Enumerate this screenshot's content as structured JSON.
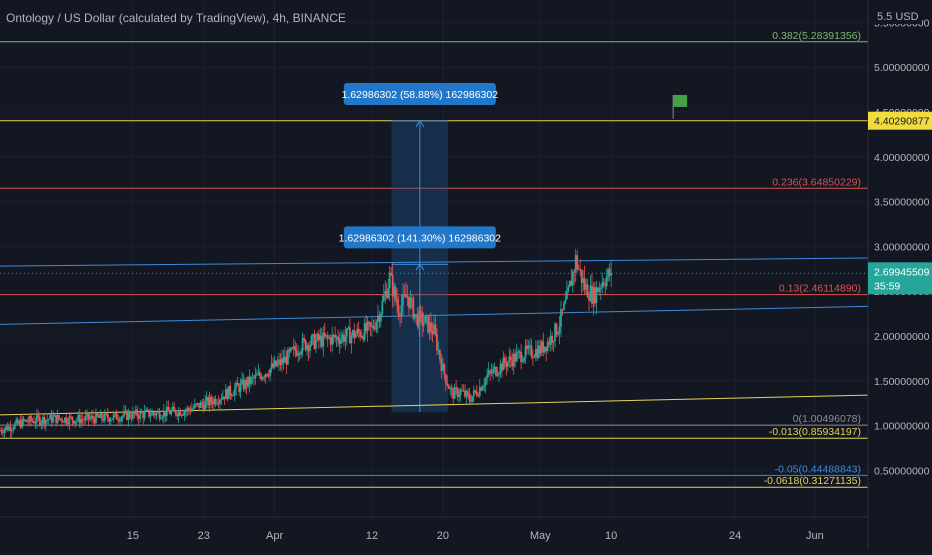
{
  "title": "Ontology / US Dollar (calculated by TradingView), 4h, BINANCE",
  "currency_label": "5.5 USD",
  "colors": {
    "background": "#131722",
    "up": "#26a69a",
    "down": "#ef5350",
    "axis_text": "#b2b5be",
    "measure_fill": "#1e5a96",
    "measure_label": "#2377c9"
  },
  "chart_data": {
    "type": "candlestick",
    "symbol": "Ontology / US Dollar",
    "timeframe": "4h",
    "exchange": "BINANCE",
    "ylim": [
      -0.02,
      5.75
    ],
    "y_ticks": [
      {
        "value": 0.5,
        "label": "0.50000000"
      },
      {
        "value": 1.0,
        "label": "1.00000000"
      },
      {
        "value": 1.5,
        "label": "1.50000000"
      },
      {
        "value": 2.0,
        "label": "2.00000000"
      },
      {
        "value": 2.5,
        "label": "2.50000000"
      },
      {
        "value": 3.0,
        "label": "3.00000000"
      },
      {
        "value": 3.5,
        "label": "3.50000000"
      },
      {
        "value": 4.0,
        "label": "4.00000000"
      },
      {
        "value": 4.5,
        "label": "4.50000000"
      },
      {
        "value": 5.0,
        "label": "5.00000000"
      },
      {
        "value": 5.5,
        "label": "5.50000000"
      }
    ],
    "x_ticks": [
      {
        "day": 15,
        "label": "15"
      },
      {
        "day": 23,
        "label": "23"
      },
      {
        "day": 31,
        "label": "Apr"
      },
      {
        "day": 42,
        "label": "12"
      },
      {
        "day": 50,
        "label": "20"
      },
      {
        "day": 61,
        "label": "May"
      },
      {
        "day": 69,
        "label": "10"
      },
      {
        "day": 83,
        "label": "24"
      },
      {
        "day": 92,
        "label": "Jun"
      }
    ],
    "xlim": [
      0,
      98
    ],
    "price_path": [
      [
        0,
        0.95
      ],
      [
        3,
        1.05
      ],
      [
        6,
        1.08
      ],
      [
        9,
        1.07
      ],
      [
        12,
        1.09
      ],
      [
        15,
        1.12
      ],
      [
        18,
        1.14
      ],
      [
        21,
        1.17
      ],
      [
        24,
        1.28
      ],
      [
        26,
        1.38
      ],
      [
        28,
        1.48
      ],
      [
        30,
        1.6
      ],
      [
        32,
        1.72
      ],
      [
        34,
        1.9
      ],
      [
        36,
        1.95
      ],
      [
        38,
        1.98
      ],
      [
        40,
        2.02
      ],
      [
        42,
        2.08
      ],
      [
        43,
        2.3
      ],
      [
        44,
        2.65
      ],
      [
        45,
        2.3
      ],
      [
        46,
        2.45
      ],
      [
        47,
        2.2
      ],
      [
        48,
        2.15
      ],
      [
        49,
        2.05
      ],
      [
        50,
        1.62
      ],
      [
        51,
        1.35
      ],
      [
        52,
        1.38
      ],
      [
        53,
        1.3
      ],
      [
        54,
        1.4
      ],
      [
        55,
        1.55
      ],
      [
        57,
        1.7
      ],
      [
        59,
        1.8
      ],
      [
        61,
        1.85
      ],
      [
        62,
        1.95
      ],
      [
        63,
        2.1
      ],
      [
        64,
        2.4
      ],
      [
        65,
        2.85
      ],
      [
        66,
        2.55
      ],
      [
        67,
        2.45
      ],
      [
        68,
        2.62
      ],
      [
        69,
        2.7
      ]
    ],
    "last_price": 2.69945509,
    "last_price_label": "2.69945509",
    "countdown": "35:59",
    "marked_price": 4.40290877,
    "marked_price_label": "4.40290877",
    "fib_levels": [
      {
        "value": 5.28391356,
        "label": "0.382(5.28391356)",
        "color": "#7cb86a"
      },
      {
        "value": 3.64850229,
        "label": "0.236(3.64850229)",
        "color": "#d9534f"
      },
      {
        "value": 2.4611489,
        "label": "0.13(2.46114890)",
        "color": "#d9534f"
      },
      {
        "value": 1.00496078,
        "label": "0(1.00496078)",
        "color": "#8a8d96"
      },
      {
        "value": 0.85934197,
        "label": "-0.013(0.85934197)",
        "color": "#e6d35a"
      },
      {
        "value": 0.44488843,
        "label": "-0.05(0.44488843)",
        "color": "#3d8bd9"
      },
      {
        "value": 0.31271135,
        "label": "-0.0618(0.31271135)",
        "color": "#e6d35a"
      }
    ],
    "channel_lines": [
      {
        "from": [
          0,
          2.78
        ],
        "to": [
          98,
          2.87
        ],
        "color": "#3d8bd9"
      },
      {
        "from": [
          0,
          2.13
        ],
        "to": [
          98,
          2.33
        ],
        "color": "#3d8bd9"
      },
      {
        "from": [
          0,
          1.12
        ],
        "to": [
          98,
          1.34
        ],
        "color": "#e6d35a"
      }
    ],
    "measure_box": {
      "x_range": [
        44.2,
        50.6
      ],
      "bottom": 1.15,
      "mid": 2.8,
      "top": 4.4,
      "label_upper": "1.62986302 (58.88%) 162986302",
      "label_lower": "1.62986302 (141.30%) 162986302"
    },
    "flag": {
      "day": 76,
      "value": 4.4
    }
  }
}
